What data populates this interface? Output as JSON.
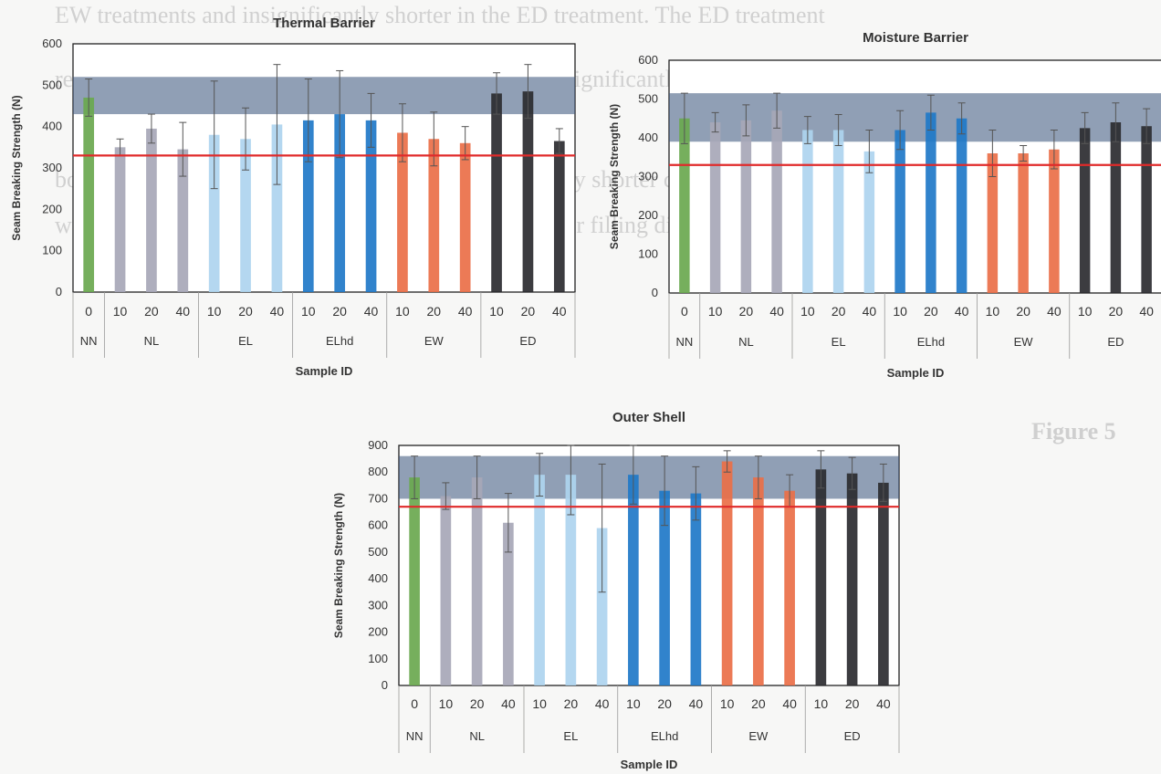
{
  "background_text": [
    "EW treatments and insignificantly shorter in the ED treatment. The ED treatment",
    "resulted in the shortest char length in both directions, significantly less than NL in",
    "both directions. The EW treatment showed significantly shorter char length than ED in",
    "warp direction, but showed no significant difference for filling direction compared to the"
  ],
  "figure_label": "Figure 5",
  "chart_data": [
    {
      "type": "bar",
      "title": "Thermal Barrier",
      "xlabel": "Sample ID",
      "ylabel": "Seam Breaking Strength (N)",
      "ylim": [
        0,
        600
      ],
      "yticks": [
        0,
        100,
        200,
        300,
        400,
        500,
        600
      ],
      "categories": [
        "0",
        "10",
        "20",
        "40",
        "10",
        "20",
        "40",
        "10",
        "20",
        "40",
        "10",
        "20",
        "40",
        "10",
        "20",
        "40"
      ],
      "groups": [
        {
          "label": "NN",
          "count": 1
        },
        {
          "label": "NL",
          "count": 3
        },
        {
          "label": "EL",
          "count": 3
        },
        {
          "label": "ELhd",
          "count": 3
        },
        {
          "label": "EW",
          "count": 3
        },
        {
          "label": "ED",
          "count": 3
        }
      ],
      "values": [
        470,
        350,
        395,
        345,
        380,
        370,
        405,
        415,
        430,
        415,
        385,
        370,
        360,
        480,
        485,
        365
      ],
      "errors": [
        45,
        20,
        35,
        65,
        130,
        75,
        145,
        100,
        105,
        65,
        70,
        65,
        40,
        50,
        65,
        30
      ],
      "colors": [
        "#6aa84f",
        "#a7a7b7",
        "#a7a7b7",
        "#a7a7b7",
        "#aed4ef",
        "#aed4ef",
        "#aed4ef",
        "#1f78c8",
        "#1f78c8",
        "#1f78c8",
        "#ea6f48",
        "#ea6f48",
        "#ea6f48",
        "#2b2b30",
        "#2b2b30",
        "#2b2b30"
      ],
      "reference_line": 330,
      "shaded_band": [
        430,
        520
      ],
      "grid": false
    },
    {
      "type": "bar",
      "title": "Moisture Barrier",
      "xlabel": "Sample ID",
      "ylabel": "Seam Breaking Strength (N)",
      "ylim": [
        0,
        600
      ],
      "yticks": [
        0,
        100,
        200,
        300,
        400,
        500,
        600
      ],
      "categories": [
        "0",
        "10",
        "20",
        "40",
        "10",
        "20",
        "40",
        "10",
        "20",
        "40",
        "10",
        "20",
        "40",
        "10",
        "20",
        "40"
      ],
      "groups": [
        {
          "label": "NN",
          "count": 1
        },
        {
          "label": "NL",
          "count": 3
        },
        {
          "label": "EL",
          "count": 3
        },
        {
          "label": "ELhd",
          "count": 3
        },
        {
          "label": "EW",
          "count": 3
        },
        {
          "label": "ED",
          "count": 3
        }
      ],
      "values": [
        450,
        440,
        445,
        470,
        420,
        420,
        365,
        420,
        465,
        450,
        360,
        360,
        370,
        425,
        440,
        430
      ],
      "errors": [
        65,
        25,
        40,
        45,
        35,
        40,
        55,
        50,
        45,
        40,
        60,
        20,
        50,
        40,
        50,
        45
      ],
      "colors": [
        "#6aa84f",
        "#a7a7b7",
        "#a7a7b7",
        "#a7a7b7",
        "#aed4ef",
        "#aed4ef",
        "#aed4ef",
        "#1f78c8",
        "#1f78c8",
        "#1f78c8",
        "#ea6f48",
        "#ea6f48",
        "#ea6f48",
        "#2b2b30",
        "#2b2b30",
        "#2b2b30"
      ],
      "reference_line": 330,
      "shaded_band": [
        390,
        515
      ],
      "grid": false
    },
    {
      "type": "bar",
      "title": "Outer Shell",
      "xlabel": "Sample ID",
      "ylabel": "Seam Breaking Strength (N)",
      "ylim": [
        0,
        900
      ],
      "yticks": [
        0,
        100,
        200,
        300,
        400,
        500,
        600,
        700,
        800,
        900
      ],
      "categories": [
        "0",
        "10",
        "20",
        "40",
        "10",
        "20",
        "40",
        "10",
        "20",
        "40",
        "10",
        "20",
        "40",
        "10",
        "20",
        "40"
      ],
      "groups": [
        {
          "label": "NN",
          "count": 1
        },
        {
          "label": "NL",
          "count": 3
        },
        {
          "label": "EL",
          "count": 3
        },
        {
          "label": "ELhd",
          "count": 3
        },
        {
          "label": "EW",
          "count": 3
        },
        {
          "label": "ED",
          "count": 3
        }
      ],
      "values": [
        780,
        710,
        780,
        610,
        790,
        790,
        590,
        790,
        730,
        720,
        840,
        780,
        730,
        810,
        795,
        760
      ],
      "errors": [
        80,
        50,
        80,
        110,
        80,
        150,
        240,
        110,
        130,
        100,
        40,
        80,
        60,
        70,
        60,
        70
      ],
      "colors": [
        "#6aa84f",
        "#a7a7b7",
        "#a7a7b7",
        "#a7a7b7",
        "#aed4ef",
        "#aed4ef",
        "#aed4ef",
        "#1f78c8",
        "#1f78c8",
        "#1f78c8",
        "#ea6f48",
        "#ea6f48",
        "#ea6f48",
        "#2b2b30",
        "#2b2b30",
        "#2b2b30"
      ],
      "reference_line": 670,
      "shaded_band": [
        700,
        860
      ],
      "grid": false
    }
  ]
}
